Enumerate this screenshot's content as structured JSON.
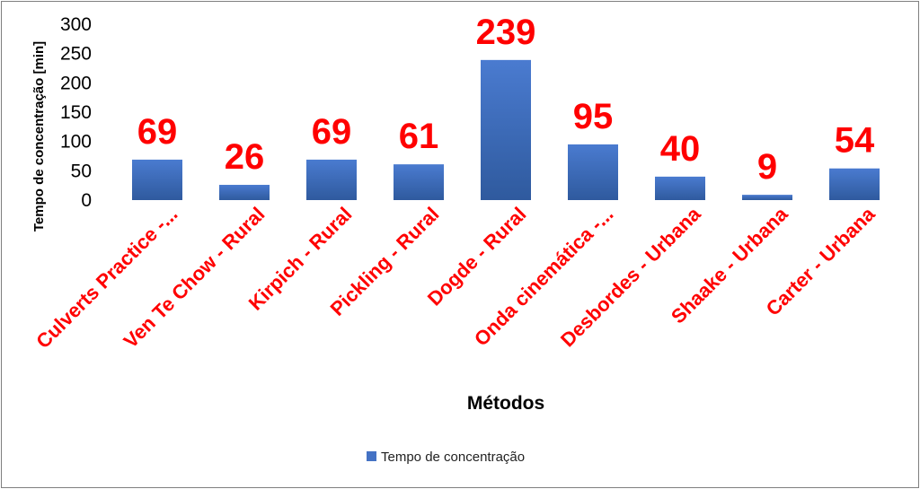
{
  "chart_data": {
    "type": "bar",
    "categories": [
      "Culverts Practice -...",
      "Ven Te Chow - Rural",
      "Kirpich - Rural",
      "Pickling - Rural",
      "Dogde - Rural",
      "Onda cinemática -...",
      "Desbordes - Urbana",
      "Shaake - Urbana",
      "Carter - Urbana"
    ],
    "series": [
      {
        "name": "Tempo de concentração",
        "values": [
          69,
          26,
          69,
          61,
          239,
          95,
          40,
          9,
          54
        ]
      }
    ],
    "data_labels": [
      "69",
      "26",
      "69",
      "61",
      "239",
      "95",
      "40",
      "9",
      "54"
    ],
    "yticks": [
      "0",
      "50",
      "100",
      "150",
      "200",
      "250",
      "300"
    ],
    "ylim": [
      0,
      300
    ],
    "xlabel": "Métodos",
    "ylabel": "Tempo de concentração [min]",
    "legend_position": "bottom",
    "grid": false,
    "colors": {
      "bar": "#4472c4",
      "bar_dark": "#2f5597",
      "labels": "#ff0000"
    }
  }
}
